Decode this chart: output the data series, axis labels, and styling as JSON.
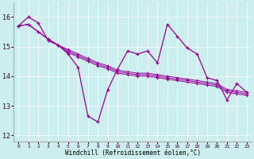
{
  "xlabel": "Windchill (Refroidissement éolien,°C)",
  "background_color": "#cceeee",
  "line_color": "#990099",
  "xlim": [
    -0.5,
    23.5
  ],
  "ylim": [
    11.8,
    16.5
  ],
  "yticks": [
    12,
    13,
    14,
    15,
    16
  ],
  "xticks": [
    0,
    1,
    2,
    3,
    4,
    5,
    6,
    7,
    8,
    9,
    10,
    11,
    12,
    13,
    14,
    15,
    16,
    17,
    18,
    19,
    20,
    21,
    22,
    23
  ],
  "series_spiky": [
    15.7,
    16.0,
    15.8,
    15.2,
    15.05,
    14.75,
    14.3,
    12.65,
    12.45,
    13.55,
    14.25,
    14.85,
    14.75,
    14.85,
    14.45,
    15.75,
    15.35,
    14.95,
    14.75,
    13.95,
    13.85,
    13.2,
    13.75,
    13.45
  ],
  "series_smooth": [
    [
      15.7,
      15.75,
      15.5,
      15.25,
      15.05,
      14.9,
      14.75,
      14.6,
      14.45,
      14.35,
      14.2,
      14.15,
      14.1,
      14.1,
      14.05,
      14.0,
      13.95,
      13.9,
      13.85,
      13.8,
      13.75,
      13.55,
      13.5,
      13.45
    ],
    [
      15.7,
      15.75,
      15.5,
      15.25,
      15.05,
      14.85,
      14.7,
      14.55,
      14.4,
      14.3,
      14.15,
      14.1,
      14.05,
      14.05,
      14.0,
      13.95,
      13.9,
      13.85,
      13.8,
      13.75,
      13.7,
      13.5,
      13.45,
      13.4
    ],
    [
      15.7,
      15.75,
      15.5,
      15.25,
      15.05,
      14.8,
      14.65,
      14.5,
      14.35,
      14.25,
      14.1,
      14.05,
      14.0,
      14.0,
      13.95,
      13.9,
      13.85,
      13.8,
      13.75,
      13.7,
      13.65,
      13.45,
      13.4,
      13.35
    ]
  ]
}
